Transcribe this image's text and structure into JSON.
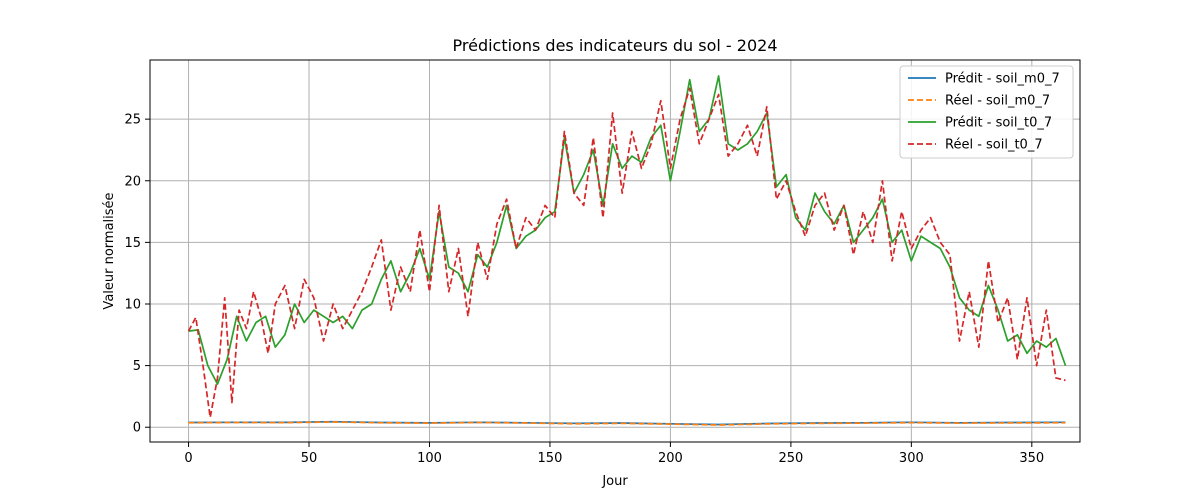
{
  "chart_data": {
    "type": "line",
    "title": "Prédictions des indicateurs du sol - 2024",
    "xlabel": "Jour",
    "ylabel": "Valeur normalisée",
    "xlim": [
      -16,
      370
    ],
    "ylim": [
      -1.2,
      29.8
    ],
    "xticks": [
      0,
      50,
      100,
      150,
      200,
      250,
      300,
      350
    ],
    "yticks": [
      0,
      5,
      10,
      15,
      20,
      25
    ],
    "grid": true,
    "legend_position": "top-right",
    "series": [
      {
        "name": "Prédit - soil_m0_7",
        "color": "#1f77b4",
        "dash": "solid",
        "x": [
          0,
          20,
          40,
          60,
          80,
          100,
          120,
          140,
          160,
          180,
          200,
          220,
          240,
          260,
          280,
          300,
          320,
          340,
          364
        ],
        "y": [
          0.38,
          0.4,
          0.39,
          0.45,
          0.38,
          0.35,
          0.4,
          0.36,
          0.32,
          0.34,
          0.28,
          0.22,
          0.3,
          0.34,
          0.36,
          0.4,
          0.36,
          0.38,
          0.4
        ]
      },
      {
        "name": "Réel - soil_m0_7",
        "color": "#ff7f0e",
        "dash": "dashed",
        "x": [
          0,
          20,
          40,
          60,
          80,
          100,
          120,
          140,
          160,
          180,
          200,
          220,
          240,
          260,
          280,
          300,
          320,
          340,
          364
        ],
        "y": [
          0.36,
          0.38,
          0.37,
          0.42,
          0.36,
          0.33,
          0.38,
          0.34,
          0.28,
          0.31,
          0.25,
          0.18,
          0.27,
          0.31,
          0.33,
          0.37,
          0.33,
          0.35,
          0.36
        ]
      },
      {
        "name": "Prédit - soil_t0_7",
        "color": "#2ca02c",
        "dash": "solid",
        "x": [
          0,
          4,
          8,
          12,
          16,
          20,
          24,
          28,
          32,
          36,
          40,
          44,
          48,
          52,
          56,
          60,
          64,
          68,
          72,
          76,
          80,
          84,
          88,
          92,
          96,
          100,
          104,
          108,
          112,
          116,
          120,
          124,
          128,
          132,
          136,
          140,
          144,
          148,
          152,
          156,
          160,
          164,
          168,
          172,
          176,
          180,
          184,
          188,
          192,
          196,
          200,
          204,
          208,
          212,
          216,
          220,
          224,
          228,
          232,
          236,
          240,
          244,
          248,
          252,
          256,
          260,
          264,
          268,
          272,
          276,
          280,
          284,
          288,
          292,
          296,
          300,
          304,
          308,
          312,
          316,
          320,
          324,
          328,
          332,
          336,
          340,
          344,
          348,
          352,
          356,
          360,
          364
        ],
        "y": [
          7.8,
          7.9,
          5.0,
          3.5,
          5.5,
          9.0,
          7.0,
          8.5,
          9.0,
          6.5,
          7.5,
          10.0,
          8.5,
          9.5,
          9.0,
          8.5,
          9.0,
          8.0,
          9.5,
          10.0,
          12.0,
          13.5,
          11.0,
          12.5,
          14.5,
          12.0,
          17.5,
          13.0,
          12.5,
          11.0,
          14.0,
          13.0,
          15.0,
          18.0,
          14.5,
          15.5,
          16.0,
          17.0,
          17.5,
          23.5,
          19.0,
          20.5,
          22.5,
          18.0,
          23.0,
          21.0,
          22.0,
          21.5,
          23.5,
          24.5,
          20.0,
          24.0,
          28.2,
          24.0,
          25.0,
          28.5,
          23.0,
          22.5,
          23.0,
          24.0,
          25.5,
          19.5,
          20.5,
          17.0,
          16.0,
          19.0,
          17.5,
          16.5,
          18.0,
          15.0,
          16.0,
          17.0,
          18.5,
          15.0,
          16.0,
          13.5,
          15.5,
          15.0,
          14.5,
          13.0,
          10.5,
          9.5,
          9.0,
          11.5,
          9.5,
          7.0,
          7.5,
          6.0,
          7.0,
          6.5,
          7.2,
          5.0
        ]
      },
      {
        "name": "Réel - soil_t0_7",
        "color": "#d62728",
        "dash": "dashed",
        "x": [
          0,
          3,
          6,
          9,
          12,
          15,
          18,
          21,
          24,
          27,
          30,
          33,
          36,
          40,
          44,
          48,
          52,
          56,
          60,
          64,
          68,
          72,
          76,
          80,
          84,
          88,
          92,
          96,
          100,
          104,
          108,
          112,
          116,
          120,
          124,
          128,
          132,
          136,
          140,
          144,
          148,
          152,
          156,
          160,
          164,
          168,
          172,
          176,
          180,
          184,
          188,
          192,
          196,
          200,
          204,
          208,
          212,
          216,
          220,
          224,
          228,
          232,
          236,
          240,
          244,
          248,
          252,
          256,
          260,
          264,
          268,
          272,
          276,
          280,
          284,
          288,
          292,
          296,
          300,
          304,
          308,
          312,
          316,
          320,
          324,
          328,
          332,
          336,
          340,
          344,
          348,
          352,
          356,
          360,
          364
        ],
        "y": [
          7.8,
          8.9,
          5.0,
          0.8,
          4.0,
          10.5,
          2.0,
          9.5,
          8.0,
          11.0,
          9.0,
          6.0,
          10.0,
          11.5,
          8.0,
          12.0,
          10.5,
          7.0,
          10.0,
          8.0,
          9.5,
          11.0,
          13.0,
          15.2,
          9.5,
          13.0,
          11.0,
          16.0,
          11.0,
          18.0,
          11.0,
          14.5,
          9.0,
          15.0,
          12.0,
          16.5,
          18.5,
          14.5,
          17.0,
          16.0,
          18.0,
          17.0,
          24.0,
          19.0,
          18.0,
          23.5,
          17.0,
          25.5,
          19.0,
          24.0,
          21.0,
          23.0,
          26.5,
          21.0,
          25.0,
          27.5,
          23.0,
          25.0,
          27.0,
          22.0,
          23.0,
          24.5,
          22.0,
          26.0,
          18.5,
          20.0,
          17.5,
          15.5,
          18.0,
          19.0,
          16.0,
          18.0,
          14.0,
          17.5,
          15.0,
          20.0,
          13.5,
          17.5,
          14.5,
          16.0,
          17.0,
          15.0,
          14.0,
          7.0,
          11.0,
          6.5,
          13.5,
          8.5,
          10.5,
          5.5,
          10.5,
          5.0,
          9.5,
          4.0,
          3.8
        ]
      }
    ]
  }
}
